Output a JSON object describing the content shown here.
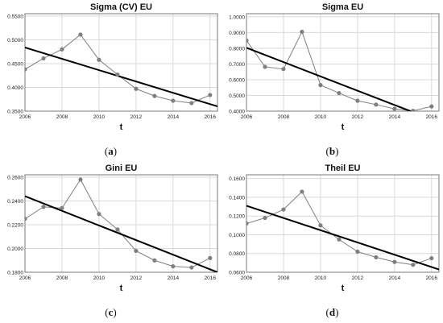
{
  "chart_data": [
    {
      "type": "line",
      "title": "Sigma (CV) EU",
      "xlabel": "t",
      "caption": {
        "open": "(",
        "letter": "a",
        "close": ")"
      },
      "x": [
        2006,
        2007,
        2008,
        2009,
        2010,
        2011,
        2012,
        2013,
        2014,
        2015,
        2016
      ],
      "series": [
        {
          "values": [
            0.438,
            0.461,
            0.48,
            0.511,
            0.458,
            0.427,
            0.397,
            0.382,
            0.372,
            0.367,
            0.384
          ]
        }
      ],
      "trend": {
        "x": [
          2006,
          2016.4
        ],
        "y": [
          0.484,
          0.36
        ]
      },
      "xlim": [
        2006,
        2016.4
      ],
      "ylim": [
        0.35,
        0.555
      ],
      "xticks": [
        2006,
        2008,
        2010,
        2012,
        2014,
        2016
      ],
      "yticks": [
        0.35,
        0.4,
        0.45,
        0.5,
        0.55
      ],
      "yticklabels": [
        "0.3500",
        "0.4000",
        "0.4500",
        "0.5000",
        "0.5500"
      ],
      "grid": true,
      "colors": {
        "series": "#7f7f7f",
        "trend": "#000000",
        "grid": "#d9d9d9"
      }
    },
    {
      "type": "line",
      "title": "Sigma EU",
      "xlabel": "t",
      "caption": {
        "open": "(",
        "letter": "b",
        "close": ")"
      },
      "x": [
        2006,
        2007,
        2008,
        2009,
        2010,
        2011,
        2012,
        2013,
        2014,
        2015,
        2016
      ],
      "series": [
        {
          "values": [
            0.85,
            0.682,
            0.668,
            0.905,
            0.566,
            0.515,
            0.466,
            0.442,
            0.415,
            0.402,
            0.43
          ]
        }
      ],
      "trend": {
        "x": [
          2006,
          2016.4
        ],
        "y": [
          0.803,
          0.33
        ]
      },
      "xlim": [
        2006,
        2016.4
      ],
      "ylim": [
        0.4,
        1.02
      ],
      "xticks": [
        2006,
        2008,
        2010,
        2012,
        2014,
        2016
      ],
      "yticks": [
        0.4,
        0.5,
        0.6,
        0.7,
        0.8,
        0.9,
        1.0
      ],
      "yticklabels": [
        "0.4000",
        "0.5000",
        "0.6000",
        "0.7000",
        "0.8000",
        "0.9000",
        "1.0000"
      ],
      "grid": true,
      "colors": {
        "series": "#7f7f7f",
        "trend": "#000000",
        "grid": "#d9d9d9"
      }
    },
    {
      "type": "line",
      "title": "Gini EU",
      "xlabel": "t",
      "caption": {
        "open": "(",
        "letter": "c",
        "close": ")"
      },
      "x": [
        2006,
        2007,
        2008,
        2009,
        2010,
        2011,
        2012,
        2013,
        2014,
        2015,
        2016
      ],
      "series": [
        {
          "values": [
            0.225,
            0.235,
            0.234,
            0.258,
            0.229,
            0.216,
            0.198,
            0.19,
            0.185,
            0.184,
            0.192
          ]
        }
      ],
      "trend": {
        "x": [
          2006,
          2016.4
        ],
        "y": [
          0.244,
          0.18
        ]
      },
      "xlim": [
        2006,
        2016.4
      ],
      "ylim": [
        0.18,
        0.262
      ],
      "xticks": [
        2006,
        2008,
        2010,
        2012,
        2014,
        2016
      ],
      "yticks": [
        0.18,
        0.2,
        0.22,
        0.24,
        0.26
      ],
      "yticklabels": [
        "0.1800",
        "0.2000",
        "0.2200",
        "0.2400",
        "0.2600"
      ],
      "grid": true,
      "colors": {
        "series": "#7f7f7f",
        "trend": "#000000",
        "grid": "#d9d9d9"
      }
    },
    {
      "type": "line",
      "title": "Theil EU",
      "xlabel": "t",
      "caption": {
        "open": "(",
        "letter": "d",
        "close": ")"
      },
      "x": [
        2006,
        2007,
        2008,
        2009,
        2010,
        2011,
        2012,
        2013,
        2014,
        2015,
        2016
      ],
      "series": [
        {
          "values": [
            0.112,
            0.118,
            0.127,
            0.146,
            0.11,
            0.095,
            0.082,
            0.076,
            0.071,
            0.068,
            0.075
          ]
        }
      ],
      "trend": {
        "x": [
          2006,
          2016.4
        ],
        "y": [
          0.131,
          0.063
        ]
      },
      "xlim": [
        2006,
        2016.4
      ],
      "ylim": [
        0.06,
        0.164
      ],
      "xticks": [
        2006,
        2008,
        2010,
        2012,
        2014,
        2016
      ],
      "yticks": [
        0.06,
        0.08,
        0.1,
        0.12,
        0.14,
        0.16
      ],
      "yticklabels": [
        "0.0600",
        "0.0800",
        "0.1000",
        "0.1200",
        "0.1400",
        "0.1600"
      ],
      "grid": true,
      "colors": {
        "series": "#7f7f7f",
        "trend": "#000000",
        "grid": "#d9d9d9"
      }
    }
  ]
}
